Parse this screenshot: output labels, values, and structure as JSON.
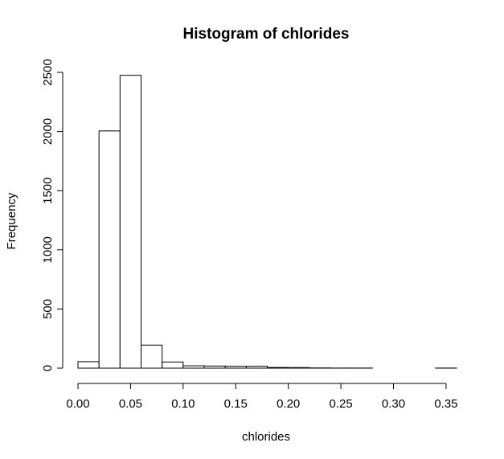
{
  "chart_data": {
    "type": "bar",
    "title": "Histogram of chlorides",
    "xlabel": "chlorides",
    "ylabel": "Frequency",
    "bin_edges": [
      0.0,
      0.02,
      0.04,
      0.06,
      0.08,
      0.1,
      0.12,
      0.14,
      0.16,
      0.18,
      0.2,
      0.22,
      0.24,
      0.26,
      0.28,
      0.3,
      0.32,
      0.34,
      0.36
    ],
    "values": [
      55,
      2005,
      2475,
      195,
      52,
      20,
      18,
      16,
      16,
      6,
      5,
      2,
      1,
      1,
      0,
      0,
      0,
      1
    ],
    "xlim": [
      0.0,
      0.36
    ],
    "ylim": [
      0,
      2500
    ],
    "x_ticks": [
      0.0,
      0.05,
      0.1,
      0.15,
      0.2,
      0.25,
      0.3,
      0.35
    ],
    "x_tick_labels": [
      "0.00",
      "0.05",
      "0.10",
      "0.15",
      "0.20",
      "0.25",
      "0.30",
      "0.35"
    ],
    "y_ticks": [
      0,
      500,
      1000,
      1500,
      2000,
      2500
    ],
    "y_tick_labels": [
      "0",
      "500",
      "1000",
      "1500",
      "2000",
      "2500"
    ],
    "grid": false
  }
}
